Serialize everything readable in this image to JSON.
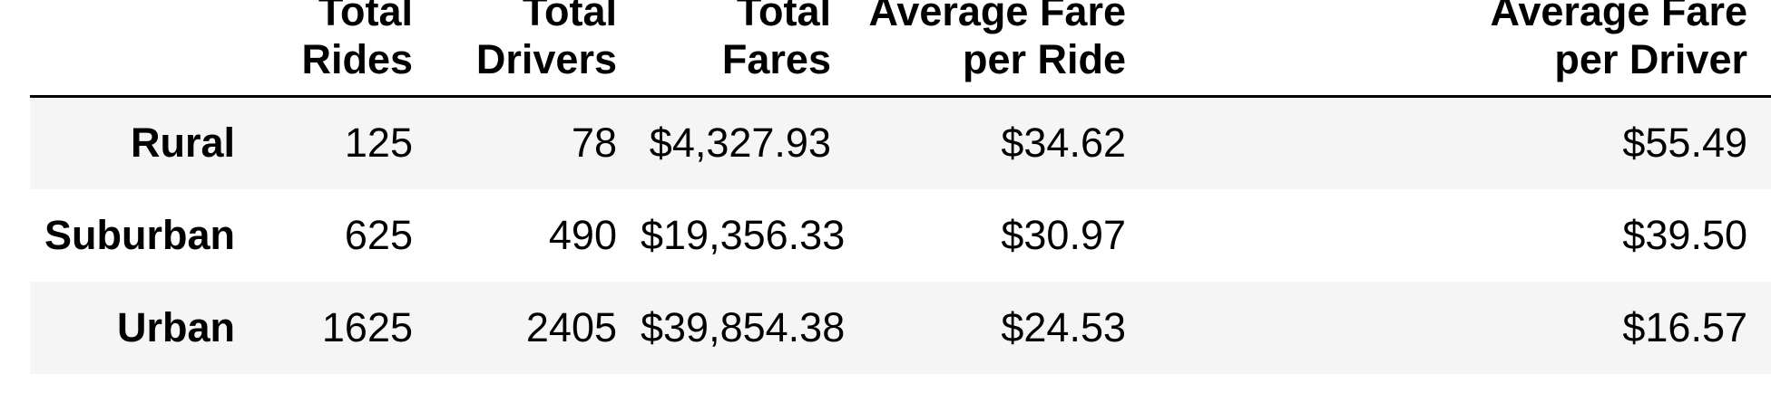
{
  "table": {
    "columns": [
      "",
      "Total Rides",
      "Total Drivers",
      "Total Fares",
      "Average Fare per Ride",
      "Average Fare per Driver"
    ],
    "header_lines": [
      [
        "",
        ""
      ],
      [
        "Total",
        "Rides"
      ],
      [
        "Total",
        "Drivers"
      ],
      [
        "Total",
        "Fares"
      ],
      [
        "Average Fare",
        "per Ride"
      ],
      [
        "Average Fare",
        "per Driver"
      ]
    ],
    "rows": [
      {
        "label": "Rural",
        "values": [
          "125",
          "78",
          "$4,327.93",
          "$34.62",
          "$55.49"
        ]
      },
      {
        "label": "Suburban",
        "values": [
          "625",
          "490",
          "$19,356.33",
          "$30.97",
          "$39.50"
        ]
      },
      {
        "label": "Urban",
        "values": [
          "1625",
          "2405",
          "$39,854.38",
          "$24.53",
          "$16.57"
        ]
      }
    ]
  }
}
